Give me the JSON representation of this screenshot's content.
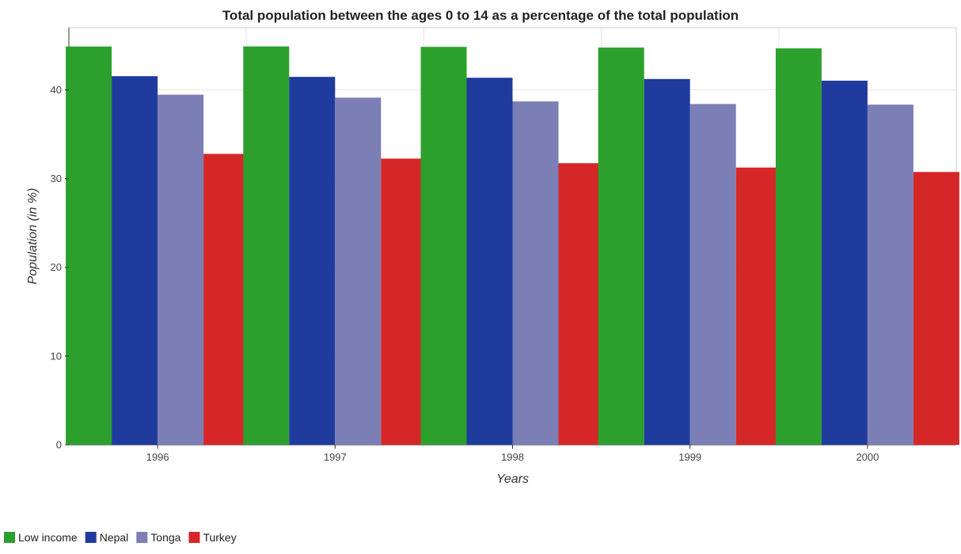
{
  "chart_data": {
    "type": "bar",
    "title": "Total population between the ages 0 to 14 as a percentage of the total population",
    "xlabel": "Years",
    "ylabel": "Population (in %)",
    "categories": [
      "1996",
      "1997",
      "1998",
      "1999",
      "2000"
    ],
    "ylim": [
      0,
      47
    ],
    "yticks": [
      0,
      10,
      20,
      30,
      40
    ],
    "grid": true,
    "legend_position": "bottom-left",
    "series": [
      {
        "name": "Low income",
        "color": "#2ca02c",
        "values": [
          44.88,
          44.89,
          44.84,
          44.76,
          44.67
        ]
      },
      {
        "name": "Nepal",
        "color": "#1f3b9e",
        "values": [
          41.54,
          41.46,
          41.36,
          41.22,
          41.03
        ]
      },
      {
        "name": "Tonga",
        "color": "#7b7fb5",
        "values": [
          39.45,
          39.12,
          38.69,
          38.4,
          38.33
        ]
      },
      {
        "name": "Turkey",
        "color": "#d62728",
        "values": [
          32.78,
          32.25,
          31.73,
          31.24,
          30.74
        ]
      }
    ]
  }
}
